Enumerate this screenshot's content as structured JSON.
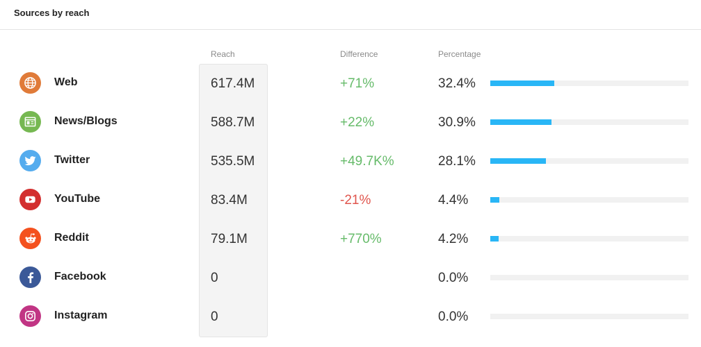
{
  "header": {
    "title": "Sources by reach"
  },
  "columns": {
    "reach": "Reach",
    "difference": "Difference",
    "percentage": "Percentage"
  },
  "colors": {
    "positive": "#66bb6a",
    "negative": "#e0554d",
    "bar": "#29b6f6"
  },
  "sources": [
    {
      "name": "Web",
      "icon": "globe-icon",
      "color": "#e07b39",
      "reach": "617.4M",
      "difference": "+71%",
      "trend": "pos",
      "percentage": "32.4%",
      "share": 32.4
    },
    {
      "name": "News/Blogs",
      "icon": "news-icon",
      "color": "#76b852",
      "reach": "588.7M",
      "difference": "+22%",
      "trend": "pos",
      "percentage": "30.9%",
      "share": 30.9
    },
    {
      "name": "Twitter",
      "icon": "twitter-icon",
      "color": "#55acee",
      "reach": "535.5M",
      "difference": "+49.7K%",
      "trend": "pos",
      "percentage": "28.1%",
      "share": 28.1
    },
    {
      "name": "YouTube",
      "icon": "youtube-icon",
      "color": "#d32f2f",
      "reach": "83.4M",
      "difference": "-21%",
      "trend": "neg",
      "percentage": "4.4%",
      "share": 4.4
    },
    {
      "name": "Reddit",
      "icon": "reddit-icon",
      "color": "#f4511e",
      "reach": "79.1M",
      "difference": "+770%",
      "trend": "pos",
      "percentage": "4.2%",
      "share": 4.2
    },
    {
      "name": "Facebook",
      "icon": "facebook-icon",
      "color": "#3b5998",
      "reach": "0",
      "difference": "",
      "trend": "pos",
      "percentage": "0.0%",
      "share": 0
    },
    {
      "name": "Instagram",
      "icon": "instagram-icon",
      "color": "#c13584",
      "reach": "0",
      "difference": "",
      "trend": "pos",
      "percentage": "0.0%",
      "share": 0
    }
  ]
}
